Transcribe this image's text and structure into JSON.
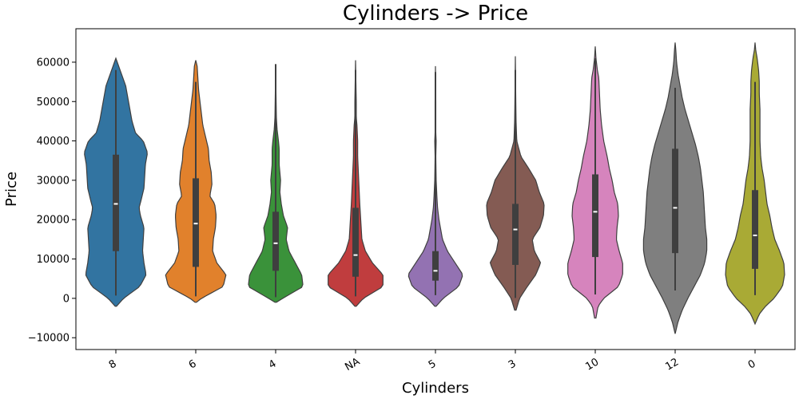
{
  "chart_data": {
    "type": "violin",
    "title": "Cylinders -> Price",
    "xlabel": "Cylinders",
    "ylabel": "Price",
    "ylim": [
      -13000,
      68500
    ],
    "yticks": [
      -10000,
      0,
      10000,
      20000,
      30000,
      40000,
      50000,
      60000
    ],
    "categories": [
      "8",
      "6",
      "4",
      "NA",
      "5",
      "3",
      "10",
      "12",
      "0"
    ],
    "colors": [
      "#3274a1",
      "#e1812c",
      "#3a923a",
      "#c03d3e",
      "#9372b2",
      "#845b53",
      "#d684bd",
      "#7f7f7f",
      "#a9aa35"
    ],
    "violins": [
      {
        "category": "8",
        "min": 700,
        "q1": 12000,
        "median": 24000,
        "q3": 36500,
        "max": 58000,
        "profile": [
          [
            -2000,
            0.02
          ],
          [
            0,
            0.22
          ],
          [
            3000,
            0.68
          ],
          [
            6000,
            0.86
          ],
          [
            9000,
            0.8
          ],
          [
            12000,
            0.76
          ],
          [
            15000,
            0.78
          ],
          [
            18000,
            0.8
          ],
          [
            21000,
            0.7
          ],
          [
            23000,
            0.66
          ],
          [
            25000,
            0.72
          ],
          [
            28000,
            0.8
          ],
          [
            31000,
            0.82
          ],
          [
            34000,
            0.84
          ],
          [
            37000,
            0.9
          ],
          [
            40000,
            0.78
          ],
          [
            42000,
            0.56
          ],
          [
            45000,
            0.46
          ],
          [
            48000,
            0.4
          ],
          [
            51000,
            0.34
          ],
          [
            54000,
            0.28
          ],
          [
            57000,
            0.16
          ],
          [
            60000,
            0.04
          ],
          [
            61000,
            0.0
          ]
        ]
      },
      {
        "category": "6",
        "min": 500,
        "q1": 8000,
        "median": 19000,
        "q3": 30500,
        "max": 55000,
        "profile": [
          [
            -1000,
            0.02
          ],
          [
            0,
            0.16
          ],
          [
            3000,
            0.78
          ],
          [
            6000,
            0.86
          ],
          [
            9000,
            0.6
          ],
          [
            12000,
            0.48
          ],
          [
            15000,
            0.5
          ],
          [
            18000,
            0.56
          ],
          [
            21000,
            0.58
          ],
          [
            24000,
            0.54
          ],
          [
            26000,
            0.4
          ],
          [
            29000,
            0.46
          ],
          [
            32000,
            0.44
          ],
          [
            35000,
            0.38
          ],
          [
            38000,
            0.36
          ],
          [
            41000,
            0.28
          ],
          [
            44000,
            0.2
          ],
          [
            47000,
            0.16
          ],
          [
            50000,
            0.12
          ],
          [
            53000,
            0.08
          ],
          [
            56000,
            0.06
          ],
          [
            59000,
            0.04
          ],
          [
            60500,
            0.0
          ]
        ]
      },
      {
        "category": "4",
        "min": 300,
        "q1": 7000,
        "median": 14000,
        "q3": 22000,
        "max": 59500,
        "profile": [
          [
            -1000,
            0.02
          ],
          [
            0,
            0.2
          ],
          [
            3000,
            0.78
          ],
          [
            6000,
            0.74
          ],
          [
            9000,
            0.56
          ],
          [
            12000,
            0.38
          ],
          [
            15000,
            0.3
          ],
          [
            18000,
            0.34
          ],
          [
            21000,
            0.22
          ],
          [
            24000,
            0.16
          ],
          [
            27000,
            0.12
          ],
          [
            30000,
            0.14
          ],
          [
            34000,
            0.1
          ],
          [
            38000,
            0.1
          ],
          [
            40000,
            0.08
          ],
          [
            43000,
            0.04
          ],
          [
            46000,
            0.02
          ],
          [
            52000,
            0.01
          ],
          [
            59500,
            0.0
          ]
        ]
      },
      {
        "category": "NA",
        "min": 500,
        "q1": 5500,
        "median": 11000,
        "q3": 23000,
        "max": 58000,
        "profile": [
          [
            -2000,
            0.02
          ],
          [
            0,
            0.22
          ],
          [
            3000,
            0.78
          ],
          [
            6000,
            0.78
          ],
          [
            9000,
            0.48
          ],
          [
            12000,
            0.28
          ],
          [
            15000,
            0.18
          ],
          [
            18000,
            0.16
          ],
          [
            21000,
            0.14
          ],
          [
            24000,
            0.12
          ],
          [
            28000,
            0.1
          ],
          [
            32000,
            0.08
          ],
          [
            36000,
            0.06
          ],
          [
            40000,
            0.06
          ],
          [
            44000,
            0.04
          ],
          [
            46000,
            0.02
          ],
          [
            50000,
            0.02
          ],
          [
            55000,
            0.01
          ],
          [
            60500,
            0.0
          ]
        ]
      },
      {
        "category": "5",
        "min": 800,
        "q1": 4500,
        "median": 7000,
        "q3": 12000,
        "max": 57500,
        "profile": [
          [
            -2000,
            0.02
          ],
          [
            0,
            0.22
          ],
          [
            3000,
            0.66
          ],
          [
            6000,
            0.78
          ],
          [
            9000,
            0.56
          ],
          [
            12000,
            0.34
          ],
          [
            15000,
            0.2
          ],
          [
            18000,
            0.14
          ],
          [
            20000,
            0.1
          ],
          [
            23000,
            0.06
          ],
          [
            26000,
            0.04
          ],
          [
            30000,
            0.02
          ],
          [
            36000,
            0.01
          ],
          [
            40000,
            0.02
          ],
          [
            42000,
            0.01
          ],
          [
            50000,
            0.01
          ],
          [
            59000,
            0.0
          ]
        ]
      },
      {
        "category": "3",
        "min": 100,
        "q1": 8500,
        "median": 17500,
        "q3": 24000,
        "max": 58000,
        "profile": [
          [
            -3000,
            0.02
          ],
          [
            0,
            0.12
          ],
          [
            3000,
            0.34
          ],
          [
            6000,
            0.58
          ],
          [
            9000,
            0.72
          ],
          [
            12000,
            0.54
          ],
          [
            15000,
            0.48
          ],
          [
            18000,
            0.7
          ],
          [
            21000,
            0.8
          ],
          [
            24000,
            0.82
          ],
          [
            27000,
            0.68
          ],
          [
            30000,
            0.58
          ],
          [
            33000,
            0.38
          ],
          [
            36000,
            0.16
          ],
          [
            40000,
            0.04
          ],
          [
            45000,
            0.02
          ],
          [
            52000,
            0.01
          ],
          [
            61500,
            0.0
          ]
        ]
      },
      {
        "category": "10",
        "min": 1000,
        "q1": 10500,
        "median": 22000,
        "q3": 31500,
        "max": 61000,
        "profile": [
          [
            -5000,
            0.02
          ],
          [
            -2000,
            0.08
          ],
          [
            0,
            0.24
          ],
          [
            3000,
            0.66
          ],
          [
            6000,
            0.78
          ],
          [
            9000,
            0.78
          ],
          [
            12000,
            0.68
          ],
          [
            15000,
            0.6
          ],
          [
            18000,
            0.62
          ],
          [
            21000,
            0.66
          ],
          [
            24000,
            0.64
          ],
          [
            27000,
            0.54
          ],
          [
            30000,
            0.48
          ],
          [
            33000,
            0.4
          ],
          [
            36000,
            0.34
          ],
          [
            40000,
            0.24
          ],
          [
            44000,
            0.18
          ],
          [
            48000,
            0.14
          ],
          [
            52000,
            0.12
          ],
          [
            56000,
            0.1
          ],
          [
            58000,
            0.06
          ],
          [
            61000,
            0.02
          ],
          [
            64000,
            0.0
          ]
        ]
      },
      {
        "category": "12",
        "min": 2000,
        "q1": 11500,
        "median": 23000,
        "q3": 38000,
        "max": 53500,
        "profile": [
          [
            -9000,
            0.0
          ],
          [
            -6000,
            0.08
          ],
          [
            -3000,
            0.2
          ],
          [
            0,
            0.36
          ],
          [
            3000,
            0.54
          ],
          [
            6000,
            0.72
          ],
          [
            9000,
            0.84
          ],
          [
            12000,
            0.9
          ],
          [
            15000,
            0.9
          ],
          [
            18000,
            0.86
          ],
          [
            21000,
            0.84
          ],
          [
            24000,
            0.82
          ],
          [
            27000,
            0.8
          ],
          [
            30000,
            0.76
          ],
          [
            33000,
            0.72
          ],
          [
            36000,
            0.66
          ],
          [
            39000,
            0.58
          ],
          [
            42000,
            0.48
          ],
          [
            45000,
            0.38
          ],
          [
            48000,
            0.28
          ],
          [
            51000,
            0.2
          ],
          [
            54000,
            0.14
          ],
          [
            57000,
            0.08
          ],
          [
            60000,
            0.04
          ],
          [
            63000,
            0.02
          ],
          [
            65000,
            0.0
          ]
        ]
      },
      {
        "category": "0",
        "min": 800,
        "q1": 7500,
        "median": 16000,
        "q3": 27500,
        "max": 55000,
        "profile": [
          [
            -6500,
            0.0
          ],
          [
            -4000,
            0.12
          ],
          [
            -2000,
            0.3
          ],
          [
            0,
            0.54
          ],
          [
            3000,
            0.78
          ],
          [
            6000,
            0.84
          ],
          [
            9000,
            0.82
          ],
          [
            12000,
            0.7
          ],
          [
            15000,
            0.56
          ],
          [
            18000,
            0.48
          ],
          [
            21000,
            0.42
          ],
          [
            24000,
            0.34
          ],
          [
            27000,
            0.3
          ],
          [
            30000,
            0.26
          ],
          [
            33000,
            0.2
          ],
          [
            36000,
            0.16
          ],
          [
            40000,
            0.14
          ],
          [
            44000,
            0.14
          ],
          [
            48000,
            0.14
          ],
          [
            52000,
            0.12
          ],
          [
            55000,
            0.12
          ],
          [
            58000,
            0.1
          ],
          [
            61000,
            0.06
          ],
          [
            63000,
            0.02
          ],
          [
            65000,
            0.0
          ]
        ]
      }
    ]
  }
}
